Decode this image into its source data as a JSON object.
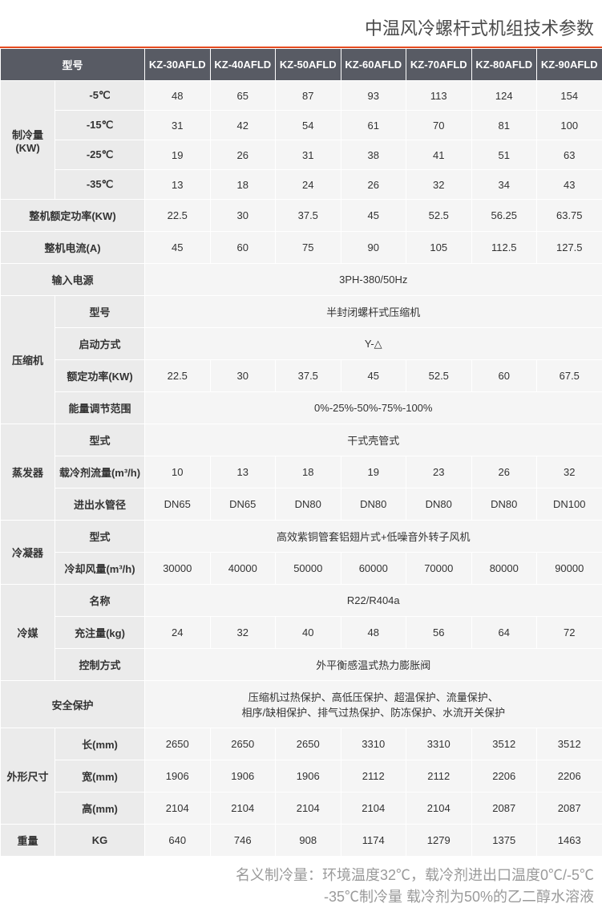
{
  "title": "中温风冷螺杆式机组技术参数",
  "header_model_label": "型号",
  "models": [
    "KZ-30AFLD",
    "KZ-40AFLD",
    "KZ-50AFLD",
    "KZ-60AFLD",
    "KZ-70AFLD",
    "KZ-80AFLD",
    "KZ-90AFLD"
  ],
  "cooling_capacity": {
    "label": "制冷量(KW)",
    "rows": [
      {
        "temp": "-5℃",
        "values": [
          "48",
          "65",
          "87",
          "93",
          "113",
          "124",
          "154"
        ]
      },
      {
        "temp": "-15℃",
        "values": [
          "31",
          "42",
          "54",
          "61",
          "70",
          "81",
          "100"
        ]
      },
      {
        "temp": "-25℃",
        "values": [
          "19",
          "26",
          "31",
          "38",
          "41",
          "51",
          "63"
        ]
      },
      {
        "temp": "-35℃",
        "values": [
          "13",
          "18",
          "24",
          "26",
          "32",
          "34",
          "43"
        ]
      }
    ]
  },
  "rated_power": {
    "label": "整机额定功率(KW)",
    "values": [
      "22.5",
      "30",
      "37.5",
      "45",
      "52.5",
      "56.25",
      "63.75"
    ]
  },
  "rated_current": {
    "label": "整机电流(A)",
    "values": [
      "45",
      "60",
      "75",
      "90",
      "105",
      "112.5",
      "127.5"
    ]
  },
  "power_supply": {
    "label": "输入电源",
    "value": "3PH-380/50Hz"
  },
  "compressor": {
    "label": "压缩机",
    "type": {
      "label": "型号",
      "value": "半封闭螺杆式压缩机"
    },
    "start": {
      "label": "启动方式",
      "value": "Y-△"
    },
    "rated_kw": {
      "label": "额定功率(KW)",
      "values": [
        "22.5",
        "30",
        "37.5",
        "45",
        "52.5",
        "60",
        "67.5"
      ]
    },
    "energy": {
      "label": "能量调节范围",
      "value": "0%-25%-50%-75%-100%"
    }
  },
  "evaporator": {
    "label": "蒸发器",
    "type": {
      "label": "型式",
      "value": "干式壳管式"
    },
    "flow": {
      "label": "载冷剂流量(m³/h)",
      "values": [
        "10",
        "13",
        "18",
        "19",
        "23",
        "26",
        "32"
      ]
    },
    "pipe": {
      "label": "进出水管径",
      "values": [
        "DN65",
        "DN65",
        "DN80",
        "DN80",
        "DN80",
        "DN80",
        "DN100"
      ]
    }
  },
  "condenser": {
    "label": "冷凝器",
    "type": {
      "label": "型式",
      "value": "高效紫铜管套铝翅片式+低噪音外转子风机"
    },
    "air_flow": {
      "label": "冷却风量(m³/h)",
      "values": [
        "30000",
        "40000",
        "50000",
        "60000",
        "70000",
        "80000",
        "90000"
      ]
    }
  },
  "refrigerant": {
    "label": "冷媒",
    "name": {
      "label": "名称",
      "value": "R22/R404a"
    },
    "charge": {
      "label": "充注量(kg)",
      "values": [
        "24",
        "32",
        "40",
        "48",
        "56",
        "64",
        "72"
      ]
    },
    "ctrl": {
      "label": "控制方式",
      "value": "外平衡感温式热力膨胀阀"
    }
  },
  "safety": {
    "label": "安全保护",
    "line1": "压缩机过热保护、高低压保护、超温保护、流量保护、",
    "line2": "相序/缺相保护、排气过热保护、防冻保护、水流开关保护"
  },
  "dimensions": {
    "label": "外形尺寸",
    "length": {
      "label": "长(mm)",
      "values": [
        "2650",
        "2650",
        "2650",
        "3310",
        "3310",
        "3512",
        "3512"
      ]
    },
    "width": {
      "label": "宽(mm)",
      "values": [
        "1906",
        "1906",
        "1906",
        "2112",
        "2112",
        "2206",
        "2206"
      ]
    },
    "height": {
      "label": "高(mm)",
      "values": [
        "2104",
        "2104",
        "2104",
        "2104",
        "2104",
        "2087",
        "2087"
      ]
    }
  },
  "weight": {
    "label": "重量",
    "unit": "KG",
    "values": [
      "640",
      "746",
      "908",
      "1174",
      "1279",
      "1375",
      "1463"
    ]
  },
  "footer": {
    "line1": "名义制冷量：环境温度32℃，载冷剂进出口温度0℃/-5℃",
    "line2": "-35℃制冷量  载冷剂为50%的乙二醇水溶液"
  },
  "style": {
    "title_color": "#4a4a4a",
    "accent_border": "#e54b1f",
    "header_bg": "#585b64",
    "header_fg": "#ffffff",
    "rowhead_bg": "#ebebeb",
    "cell_bg": "#f5f5f5",
    "border": "#ffffff",
    "footer_fg": "#9a9a9a"
  }
}
